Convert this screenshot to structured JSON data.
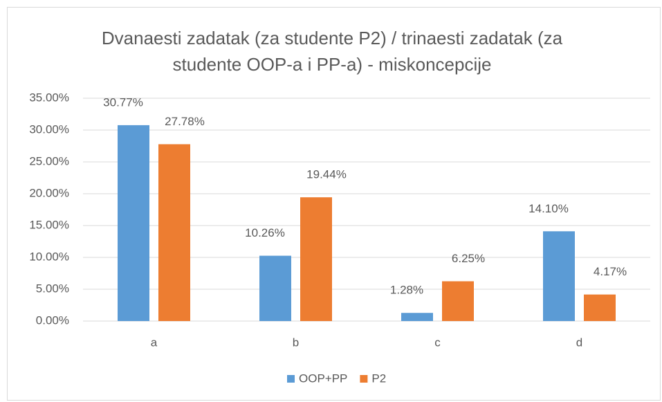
{
  "chart_data": {
    "type": "bar",
    "title": "Dvanaesti zadatak (za studente P2) / trinaesti zadatak (za studente OOP-a i PP-a) - miskoncepcije",
    "categories": [
      "a",
      "b",
      "c",
      "d"
    ],
    "series": [
      {
        "name": "OOP+PP",
        "color": "#5b9bd5",
        "values": [
          30.77,
          10.26,
          1.28,
          14.1
        ],
        "value_labels": [
          "30.77%",
          "10.26%",
          "1.28%",
          "14.10%"
        ]
      },
      {
        "name": "P2",
        "color": "#ed7d31",
        "values": [
          27.78,
          19.44,
          6.25,
          4.17
        ],
        "value_labels": [
          "27.78%",
          "19.44%",
          "6.25%",
          "4.17%"
        ]
      }
    ],
    "ylim": [
      0,
      35
    ],
    "yticks": [
      {
        "value": 0,
        "label": "0.00%"
      },
      {
        "value": 5,
        "label": "5.00%"
      },
      {
        "value": 10,
        "label": "10.00%"
      },
      {
        "value": 15,
        "label": "15.00%"
      },
      {
        "value": 20,
        "label": "20.00%"
      },
      {
        "value": 25,
        "label": "25.00%"
      },
      {
        "value": 30,
        "label": "30.00%"
      },
      {
        "value": 35,
        "label": "35.00%"
      }
    ],
    "grid": true,
    "legend": "bottom"
  }
}
